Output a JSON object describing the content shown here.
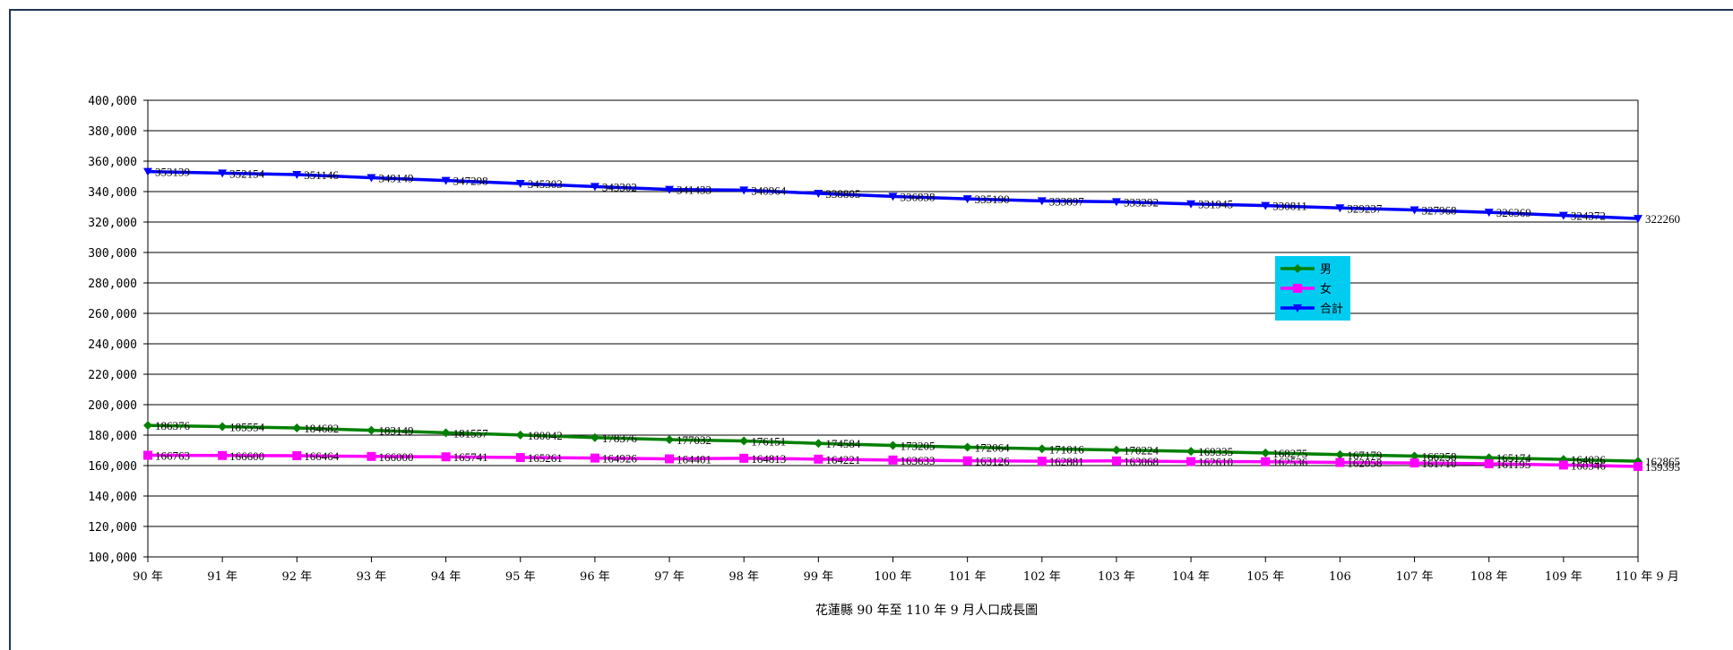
{
  "chart_data": {
    "type": "line",
    "title": "花蓮縣 90 年至 110 年 9 月人口成長圖",
    "categories": [
      "90 年",
      "91 年",
      "92 年",
      "93 年",
      "94 年",
      "95 年",
      "96 年",
      "97 年",
      "98 年",
      "99 年",
      "100 年",
      "101 年",
      "102 年",
      "103 年",
      "104 年",
      "105 年",
      "106",
      "107 年",
      "108 年",
      "109 年",
      "110 年 9 月"
    ],
    "ylim": [
      100000,
      400000
    ],
    "yticks": [
      "100,000",
      "120,000",
      "140,000",
      "160,000",
      "180,000",
      "200,000",
      "220,000",
      "240,000",
      "260,000",
      "280,000",
      "300,000",
      "320,000",
      "340,000",
      "360,000",
      "380,000",
      "400,000"
    ],
    "grid": true,
    "legend_position": "right-center",
    "series": [
      {
        "name": "男",
        "color": "#008000",
        "marker": "diamond",
        "values": [
          186376,
          185554,
          184682,
          183149,
          181557,
          180042,
          178376,
          177032,
          176151,
          174584,
          173205,
          172064,
          171016,
          170224,
          169335,
          168275,
          167179,
          166258,
          165174,
          164026,
          162865
        ]
      },
      {
        "name": "女",
        "color": "#ff00ff",
        "marker": "square",
        "values": [
          166763,
          166600,
          166464,
          166000,
          165741,
          165261,
          164926,
          164401,
          164813,
          164221,
          163633,
          163126,
          162881,
          163068,
          162610,
          162536,
          162058,
          161710,
          161195,
          160346,
          159395
        ]
      },
      {
        "name": "合計",
        "color": "#0000ff",
        "marker": "triangle-down",
        "values": [
          353139,
          352154,
          351146,
          349149,
          347298,
          345303,
          343302,
          341433,
          340964,
          338805,
          336838,
          335190,
          333897,
          333292,
          331945,
          330811,
          329237,
          327968,
          326369,
          324372,
          322260
        ]
      }
    ]
  }
}
